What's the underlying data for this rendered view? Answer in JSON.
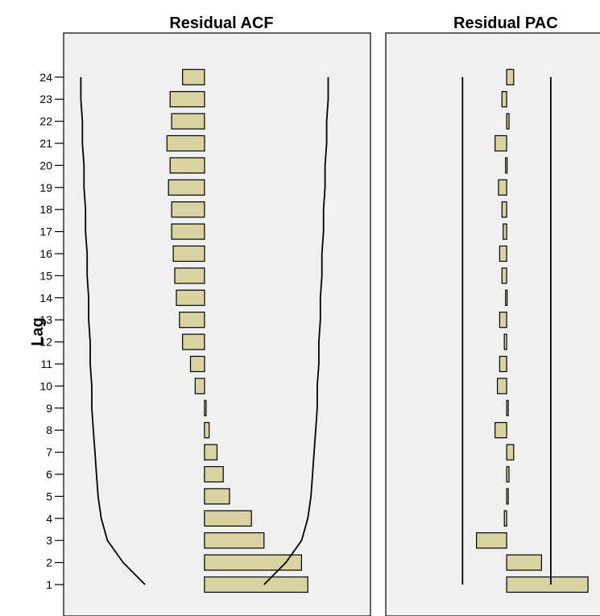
{
  "chart_data": [
    {
      "type": "bar",
      "orientation": "horizontal",
      "title": "Residual ACF",
      "ylabel": "Lag",
      "lags": [
        1,
        2,
        3,
        4,
        5,
        6,
        7,
        8,
        9,
        10,
        11,
        12,
        13,
        14,
        15,
        16,
        17,
        18,
        19,
        20,
        21,
        22,
        23,
        24
      ],
      "values": [
        0.33,
        0.31,
        0.19,
        0.15,
        0.08,
        0.06,
        0.04,
        0.015,
        0.005,
        -0.03,
        -0.045,
        -0.07,
        -0.08,
        -0.09,
        -0.095,
        -0.1,
        -0.105,
        -0.105,
        -0.115,
        -0.11,
        -0.12,
        -0.105,
        -0.11,
        -0.07
      ],
      "confidence_upper": [
        0.19,
        0.26,
        0.31,
        0.33,
        0.34,
        0.345,
        0.35,
        0.355,
        0.36,
        0.36,
        0.365,
        0.365,
        0.37,
        0.37,
        0.375,
        0.375,
        0.38,
        0.38,
        0.385,
        0.385,
        0.39,
        0.39,
        0.395,
        0.395
      ],
      "confidence_lower": [
        -0.19,
        -0.26,
        -0.31,
        -0.33,
        -0.34,
        -0.345,
        -0.35,
        -0.355,
        -0.36,
        -0.36,
        -0.365,
        -0.365,
        -0.37,
        -0.37,
        -0.375,
        -0.375,
        -0.38,
        -0.38,
        -0.385,
        -0.385,
        -0.39,
        -0.39,
        -0.395,
        -0.395
      ],
      "xlim": [
        -0.45,
        0.53
      ],
      "colors": {
        "bar": "#d8d3a0",
        "panel": "#f0f0f0",
        "line": "#000000"
      }
    },
    {
      "type": "bar",
      "orientation": "horizontal",
      "title": "Residual PAC",
      "lags": [
        1,
        2,
        3,
        4,
        5,
        6,
        7,
        8,
        9,
        10,
        11,
        12,
        13,
        14,
        15,
        16,
        17,
        18,
        19,
        20,
        21,
        22,
        23,
        24
      ],
      "values": [
        0.35,
        0.15,
        -0.13,
        -0.01,
        0.0,
        0.01,
        0.03,
        -0.05,
        0.0,
        -0.04,
        -0.03,
        -0.01,
        -0.03,
        -0.005,
        -0.02,
        -0.03,
        -0.015,
        -0.02,
        -0.035,
        -0.005,
        -0.05,
        0.01,
        -0.02,
        0.03
      ],
      "confidence_upper": [
        0.19,
        0.19,
        0.19,
        0.19,
        0.19,
        0.19,
        0.19,
        0.19,
        0.19,
        0.19,
        0.19,
        0.19,
        0.19,
        0.19,
        0.19,
        0.19,
        0.19,
        0.19,
        0.19,
        0.19,
        0.19,
        0.19,
        0.19,
        0.19
      ],
      "confidence_lower": [
        -0.19,
        -0.19,
        -0.19,
        -0.19,
        -0.19,
        -0.19,
        -0.19,
        -0.19,
        -0.19,
        -0.19,
        -0.19,
        -0.19,
        -0.19,
        -0.19,
        -0.19,
        -0.19,
        -0.19,
        -0.19,
        -0.19,
        -0.19,
        -0.19,
        -0.19,
        -0.19,
        -0.19
      ],
      "xlim": [
        -0.52,
        0.45
      ],
      "colors": {
        "bar": "#d8d3a0",
        "panel": "#f0f0f0",
        "line": "#000000"
      }
    }
  ]
}
